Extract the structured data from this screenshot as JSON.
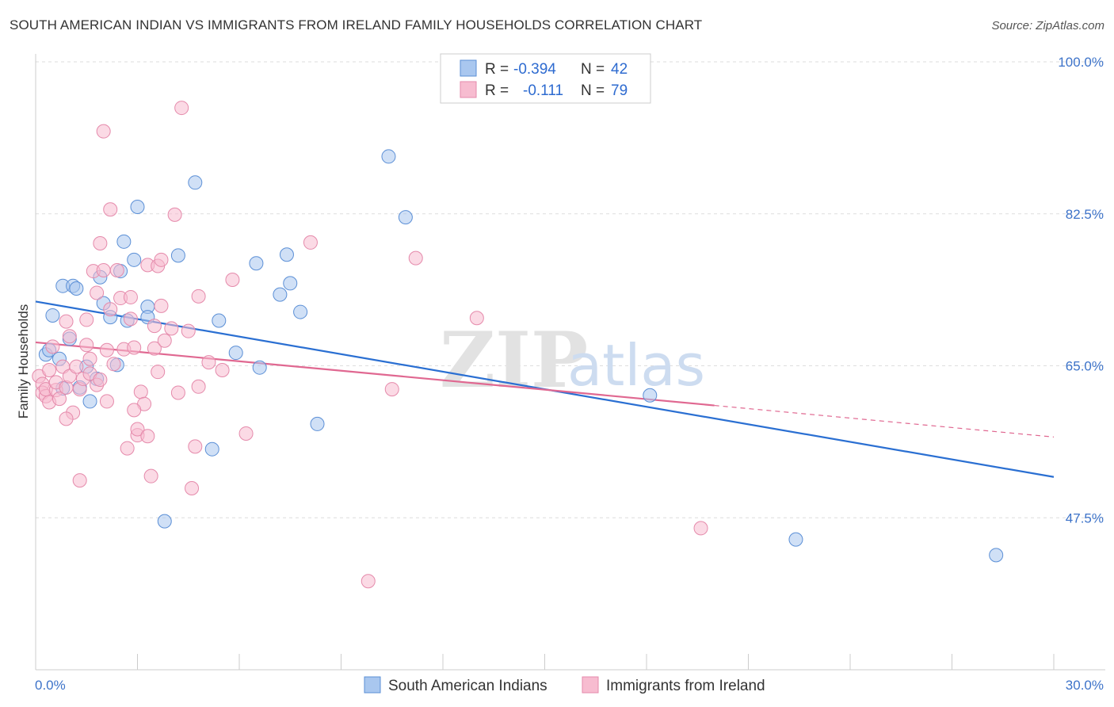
{
  "header": {
    "title": "SOUTH AMERICAN INDIAN VS IMMIGRANTS FROM IRELAND FAMILY HOUSEHOLDS CORRELATION CHART",
    "source": "Source: ZipAtlas.com"
  },
  "legend": {
    "r_label": "R =",
    "n_label": "N =",
    "blue_r": "-0.394",
    "blue_n": "42",
    "pink_r": "-0.111",
    "pink_n": "79"
  },
  "watermark": {
    "zip": "ZIP",
    "atlas": "atlas"
  },
  "colors": {
    "blue_fill": "#a9c7ef",
    "blue_stroke": "#5b8fd6",
    "blue_line": "#2a6fd2",
    "pink_fill": "#f7bcd0",
    "pink_stroke": "#e58aab",
    "pink_line": "#e06891",
    "tick_text": "#3d73c9",
    "grid": "#dddddd"
  },
  "chart_data": {
    "type": "scatter",
    "title": "SOUTH AMERICAN INDIAN VS IMMIGRANTS FROM IRELAND FAMILY HOUSEHOLDS CORRELATION CHART",
    "xlabel": "",
    "ylabel": "Family Households",
    "xlim": [
      0,
      30
    ],
    "ylim": [
      30,
      100
    ],
    "x_tick_labels": [
      {
        "value": 0,
        "label": "0.0%"
      },
      {
        "value": 30,
        "label": "30.0%"
      }
    ],
    "x_minor_ticks": [
      0,
      3,
      6,
      9,
      12,
      15,
      18,
      21,
      24,
      27,
      30
    ],
    "y_ticks": [
      {
        "value": 100,
        "label": "100.0%"
      },
      {
        "value": 82.5,
        "label": "82.5%"
      },
      {
        "value": 65,
        "label": "65.0%"
      },
      {
        "value": 47.5,
        "label": "47.5%"
      }
    ],
    "grid": true,
    "series": [
      {
        "name": "South American Indians",
        "color": "blue",
        "r": -0.394,
        "n": 42,
        "trend": {
          "x0": 0,
          "y0": 72.4,
          "x1": 30,
          "y1": 52.2,
          "dashed_from": null
        },
        "points": [
          [
            0.3,
            66.3
          ],
          [
            0.4,
            66.8
          ],
          [
            0.5,
            70.8
          ],
          [
            0.7,
            65.8
          ],
          [
            0.8,
            62.4
          ],
          [
            0.8,
            74.2
          ],
          [
            1.0,
            68.1
          ],
          [
            1.1,
            74.2
          ],
          [
            1.2,
            73.9
          ],
          [
            1.3,
            62.5
          ],
          [
            1.5,
            64.9
          ],
          [
            1.6,
            60.9
          ],
          [
            1.8,
            63.5
          ],
          [
            1.9,
            75.2
          ],
          [
            2.0,
            72.2
          ],
          [
            2.2,
            70.6
          ],
          [
            2.4,
            65.1
          ],
          [
            2.5,
            75.9
          ],
          [
            2.6,
            79.3
          ],
          [
            2.7,
            70.2
          ],
          [
            2.9,
            77.2
          ],
          [
            3.0,
            83.3
          ],
          [
            3.3,
            71.8
          ],
          [
            3.3,
            70.6
          ],
          [
            3.8,
            47.1
          ],
          [
            4.2,
            77.7
          ],
          [
            4.7,
            86.1
          ],
          [
            5.2,
            55.4
          ],
          [
            5.4,
            70.2
          ],
          [
            5.9,
            66.5
          ],
          [
            6.5,
            76.8
          ],
          [
            6.6,
            64.8
          ],
          [
            7.2,
            73.2
          ],
          [
            7.4,
            77.8
          ],
          [
            7.5,
            74.5
          ],
          [
            7.8,
            71.2
          ],
          [
            8.3,
            58.3
          ],
          [
            10.4,
            89.1
          ],
          [
            10.9,
            82.1
          ],
          [
            18.1,
            61.6
          ],
          [
            22.4,
            45.0
          ],
          [
            28.3,
            43.2
          ]
        ]
      },
      {
        "name": "Immigrants from Ireland",
        "color": "pink",
        "r": -0.111,
        "n": 79,
        "trend": {
          "x0": 0,
          "y0": 67.7,
          "x1": 30,
          "y1": 56.8,
          "dashed_from": 20
        },
        "points": [
          [
            0.1,
            63.8
          ],
          [
            0.2,
            62.9
          ],
          [
            0.2,
            61.9
          ],
          [
            0.3,
            61.5
          ],
          [
            0.3,
            62.3
          ],
          [
            0.4,
            60.8
          ],
          [
            0.4,
            64.5
          ],
          [
            0.5,
            67.2
          ],
          [
            0.6,
            62.2
          ],
          [
            0.6,
            63.1
          ],
          [
            0.7,
            61.2
          ],
          [
            0.8,
            64.9
          ],
          [
            0.9,
            62.5
          ],
          [
            0.9,
            70.1
          ],
          [
            1.0,
            68.4
          ],
          [
            1.0,
            63.8
          ],
          [
            1.1,
            59.6
          ],
          [
            1.2,
            64.9
          ],
          [
            1.3,
            51.8
          ],
          [
            1.3,
            62.3
          ],
          [
            1.4,
            63.5
          ],
          [
            1.5,
            70.3
          ],
          [
            1.5,
            67.4
          ],
          [
            1.6,
            64.1
          ],
          [
            1.7,
            75.9
          ],
          [
            1.8,
            62.8
          ],
          [
            1.8,
            73.4
          ],
          [
            1.9,
            79.1
          ],
          [
            1.9,
            63.4
          ],
          [
            2.0,
            92.0
          ],
          [
            2.0,
            76.0
          ],
          [
            2.1,
            66.8
          ],
          [
            2.2,
            83.0
          ],
          [
            2.2,
            71.5
          ],
          [
            2.3,
            65.2
          ],
          [
            2.4,
            76.0
          ],
          [
            2.5,
            72.8
          ],
          [
            2.6,
            66.9
          ],
          [
            2.7,
            55.5
          ],
          [
            2.8,
            72.9
          ],
          [
            2.8,
            70.4
          ],
          [
            2.9,
            67.1
          ],
          [
            3.0,
            57.0
          ],
          [
            3.0,
            57.7
          ],
          [
            3.1,
            62.0
          ],
          [
            3.3,
            76.6
          ],
          [
            3.3,
            56.9
          ],
          [
            3.4,
            52.3
          ],
          [
            3.5,
            69.6
          ],
          [
            3.5,
            67.0
          ],
          [
            3.6,
            76.5
          ],
          [
            3.6,
            64.3
          ],
          [
            3.7,
            77.2
          ],
          [
            3.7,
            71.9
          ],
          [
            3.8,
            67.9
          ],
          [
            4.0,
            69.3
          ],
          [
            4.1,
            82.4
          ],
          [
            4.2,
            61.9
          ],
          [
            4.3,
            94.7
          ],
          [
            4.5,
            69.0
          ],
          [
            4.6,
            50.9
          ],
          [
            4.7,
            55.7
          ],
          [
            4.8,
            73.0
          ],
          [
            4.8,
            62.6
          ],
          [
            5.1,
            65.4
          ],
          [
            5.8,
            74.9
          ],
          [
            8.1,
            79.2
          ],
          [
            11.2,
            77.4
          ],
          [
            13.0,
            70.5
          ],
          [
            10.5,
            62.3
          ],
          [
            19.6,
            46.3
          ],
          [
            9.8,
            40.2
          ],
          [
            5.5,
            64.5
          ],
          [
            6.2,
            57.2
          ],
          [
            3.2,
            60.6
          ],
          [
            2.1,
            60.9
          ],
          [
            1.6,
            65.8
          ],
          [
            0.9,
            58.9
          ],
          [
            2.9,
            59.9
          ]
        ]
      }
    ]
  },
  "bottom_legend": [
    {
      "label": "South American Indians",
      "color": "blue"
    },
    {
      "label": "Immigrants from Ireland",
      "color": "pink"
    }
  ]
}
